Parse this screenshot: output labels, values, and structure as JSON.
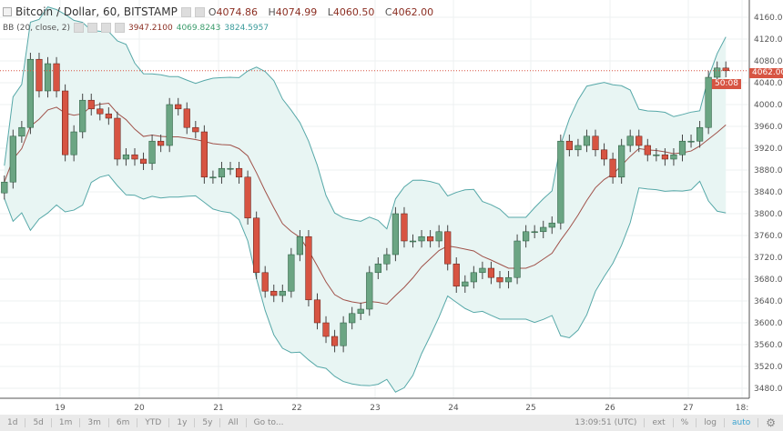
{
  "header": {
    "symbol": "Bitcoin / Dollar, 60, BITSTAMP",
    "o_label": "O",
    "o": "4074.86",
    "h_label": "H",
    "h": "4074.99",
    "l_label": "L",
    "l": "4060.50",
    "c_label": "C",
    "c": "4062.00"
  },
  "indicator": {
    "name": "BB (20, close, 2)",
    "basis": "3947.2100",
    "upper": "4069.8243",
    "lower": "3824.5957",
    "basis_color": "#8b2e22",
    "band_color": "#3a9b9b"
  },
  "price_label": "4062.00",
  "countdown": "50:08",
  "toolbar": {
    "ranges": [
      "1d",
      "5d",
      "1m",
      "3m",
      "6m",
      "YTD",
      "1y",
      "5y",
      "All",
      "Go to..."
    ],
    "time": "13:09:51 (UTC)",
    "ext": "ext",
    "pct": "%",
    "log": "log",
    "auto": "auto",
    "settings_icon": "gear-icon"
  },
  "colors": {
    "up": "#6ba583",
    "down": "#d75442",
    "band_fill": "#e8f5f3",
    "band_line": "#56a8a8",
    "ma": "#a0524a"
  },
  "chart_data": {
    "type": "candlestick",
    "interval": "60",
    "ylim": [
      3480,
      4160
    ],
    "yticks": [
      4160,
      4120,
      4080,
      4040,
      4000,
      3960,
      3920,
      3880,
      3840,
      3800,
      3760,
      3720,
      3680,
      3640,
      3600,
      3560,
      3520,
      3480
    ],
    "xticks": [
      "19",
      "20",
      "21",
      "22",
      "23",
      "24",
      "25",
      "26",
      "27",
      "18:"
    ],
    "closes": [
      3858,
      3942,
      3958,
      4083,
      4025,
      4075,
      4025,
      3908,
      3950,
      4008,
      3992,
      3983,
      3975,
      3900,
      3908,
      3900,
      3892,
      3933,
      3925,
      4000,
      3992,
      3958,
      3950,
      3867,
      3867,
      3883,
      3883,
      3867,
      3792,
      3692,
      3658,
      3650,
      3658,
      3725,
      3758,
      3642,
      3600,
      3575,
      3558,
      3600,
      3617,
      3625,
      3692,
      3708,
      3725,
      3800,
      3750,
      3750,
      3758,
      3750,
      3767,
      3708,
      3667,
      3675,
      3692,
      3700,
      3683,
      3675,
      3683,
      3750,
      3767,
      3767,
      3775,
      3783,
      3933,
      3917,
      3925,
      3942,
      3917,
      3900,
      3867,
      3925,
      3942,
      3925,
      3908,
      3908,
      3900,
      3908,
      3933,
      3933,
      3958,
      4050,
      4067,
      4062
    ],
    "last_price": 4062
  }
}
